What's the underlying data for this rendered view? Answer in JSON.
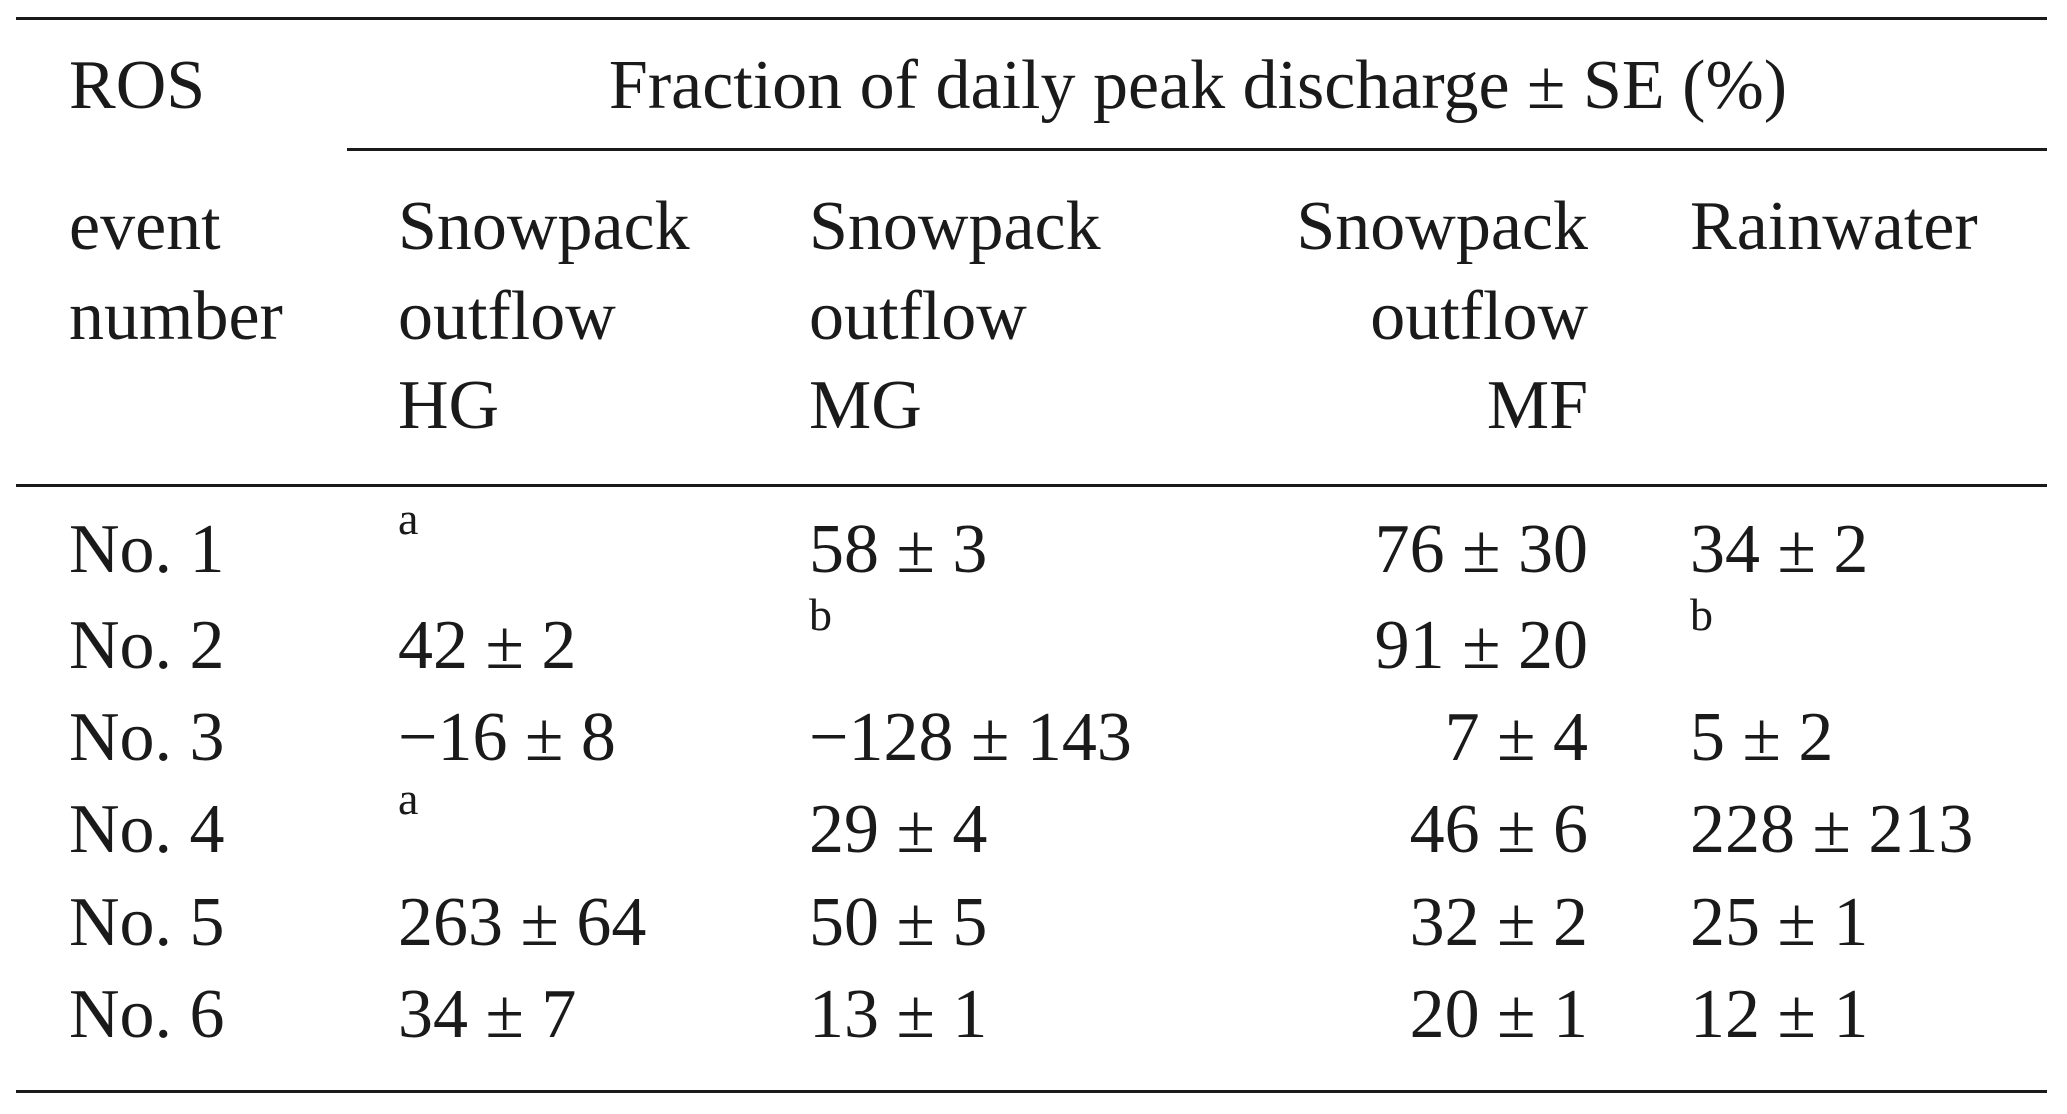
{
  "header": {
    "ros_label": "ROS",
    "spanner": "Fraction of daily peak discharge ± SE (%)",
    "event_number_lines": [
      "event",
      "number"
    ],
    "columns": [
      {
        "lines": [
          "Snowpack",
          "outflow",
          "HG"
        ]
      },
      {
        "lines": [
          "Snowpack",
          "outflow",
          "MG"
        ]
      },
      {
        "lines": [
          "Snowpack",
          "outflow",
          "MF"
        ]
      },
      {
        "lines": [
          "Rainwater"
        ]
      }
    ]
  },
  "rows": [
    {
      "event": "No. 1",
      "cells": [
        {
          "note": "a"
        },
        {
          "value": "58 ± 3"
        },
        {
          "value": "76 ± 30"
        },
        {
          "value": "34 ± 2"
        }
      ]
    },
    {
      "event": "No. 2",
      "cells": [
        {
          "value": "42 ± 2"
        },
        {
          "note": "b"
        },
        {
          "value": "91 ± 20"
        },
        {
          "note": "b"
        }
      ]
    },
    {
      "event": "No. 3",
      "cells": [
        {
          "value": "−16 ± 8"
        },
        {
          "value": "−128 ± 143"
        },
        {
          "value": "7 ± 4"
        },
        {
          "value": "5 ± 2"
        }
      ]
    },
    {
      "event": "No. 4",
      "cells": [
        {
          "note": "a"
        },
        {
          "value": "29 ± 4"
        },
        {
          "value": "46 ± 6"
        },
        {
          "value": "228 ± 213"
        }
      ]
    },
    {
      "event": "No. 5",
      "cells": [
        {
          "value": "263 ± 64"
        },
        {
          "value": "50 ± 5"
        },
        {
          "value": "32 ± 2"
        },
        {
          "value": "25 ± 1"
        }
      ]
    },
    {
      "event": "No. 6",
      "cells": [
        {
          "value": "34 ± 7"
        },
        {
          "value": "13 ± 1"
        },
        {
          "value": "20 ± 1"
        },
        {
          "value": "12 ± 1"
        }
      ]
    }
  ]
}
